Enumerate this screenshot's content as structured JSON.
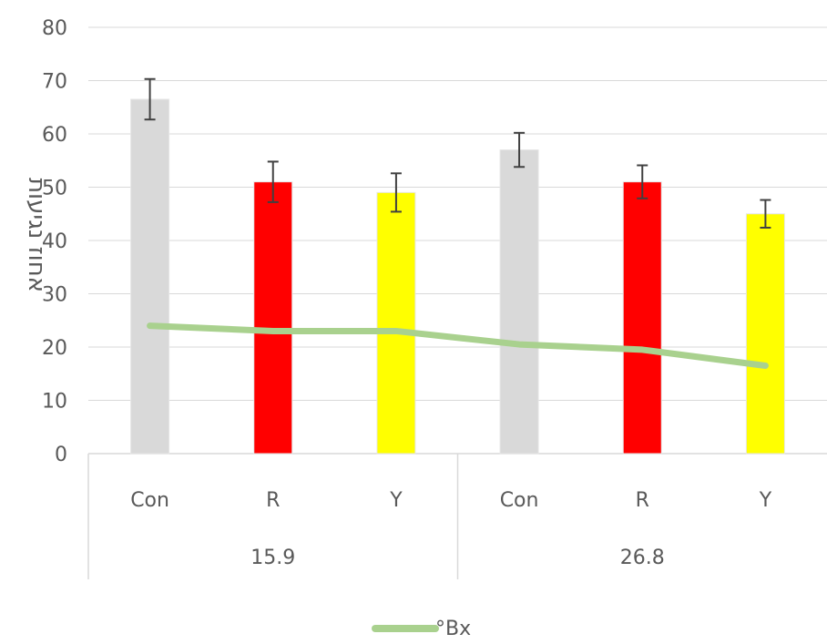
{
  "chart_data": {
    "type": "bar",
    "ylabel": "אחוז נגיעות",
    "ylim": [
      0,
      80
    ],
    "yticks": [
      0,
      10,
      20,
      30,
      40,
      50,
      60,
      70,
      80
    ],
    "grid": true,
    "categories": [
      "Con",
      "R",
      "Y",
      "Con",
      "R",
      "Y"
    ],
    "groups": [
      {
        "label": "15.9",
        "categories": [
          "Con",
          "R",
          "Y"
        ]
      },
      {
        "label": "26.8",
        "categories": [
          "Con",
          "R",
          "Y"
        ]
      }
    ],
    "series": [
      {
        "type": "bar",
        "values": [
          66.5,
          51.0,
          49.0,
          57.0,
          51.0,
          45.0
        ],
        "errors": [
          3.8,
          3.8,
          3.6,
          3.2,
          3.1,
          2.6
        ],
        "colors": [
          "#d9d9d9",
          "#ff0000",
          "#ffff00",
          "#d9d9d9",
          "#ff0000",
          "#ffff00"
        ]
      },
      {
        "name": "°Bx",
        "type": "line",
        "values": [
          24.0,
          23.0,
          23.0,
          20.5,
          19.5,
          16.5
        ],
        "color": "#a9d18e"
      }
    ],
    "legend_position": "bottom"
  }
}
